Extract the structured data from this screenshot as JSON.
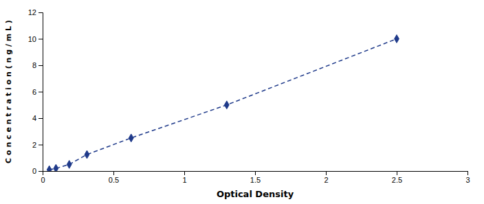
{
  "chart_data": {
    "type": "line",
    "xlabel": "Optical Density",
    "ylabel": "C o n c e n t r a t i o n ( n g / m L )",
    "x": [
      0.047,
      0.094,
      0.188,
      0.313,
      0.625,
      1.3,
      2.5
    ],
    "values": [
      0.1,
      0.2,
      0.5,
      1.25,
      2.5,
      5.0,
      10.0
    ],
    "color": "#1F3A8A",
    "marker": "diamond",
    "line_style": "dashed",
    "xlim": [
      0,
      3
    ],
    "ylim": [
      0,
      12
    ],
    "xticks": [
      0,
      0.5,
      1,
      1.5,
      2,
      2.5,
      3
    ],
    "yticks": [
      0,
      2,
      4,
      6,
      8,
      10,
      12
    ],
    "grid": false
  }
}
